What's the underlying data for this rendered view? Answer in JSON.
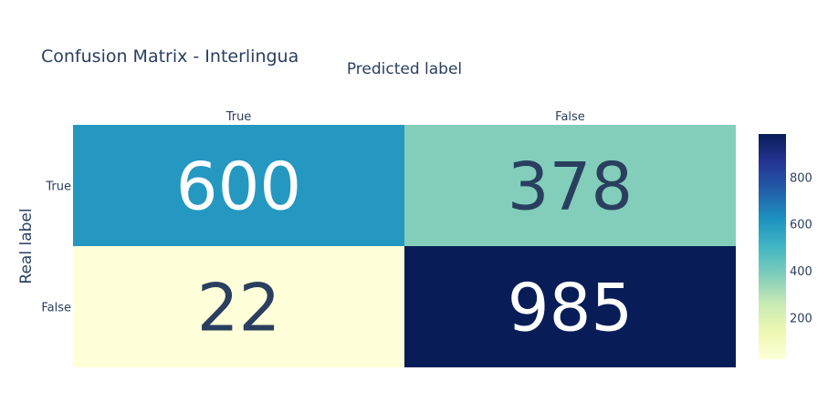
{
  "chart_data": {
    "type": "heatmap",
    "title": "Confusion Matrix - Interlingua",
    "xlabel": "Predicted label",
    "ylabel": "Real label",
    "x_categories": [
      "True",
      "False"
    ],
    "y_categories": [
      "True",
      "False"
    ],
    "z": [
      [
        600,
        378
      ],
      [
        22,
        985
      ]
    ],
    "colorscale": "YlGnBu",
    "zmin": 22,
    "zmax": 985,
    "colorbar_ticks": [
      200,
      400,
      600,
      800
    ]
  }
}
